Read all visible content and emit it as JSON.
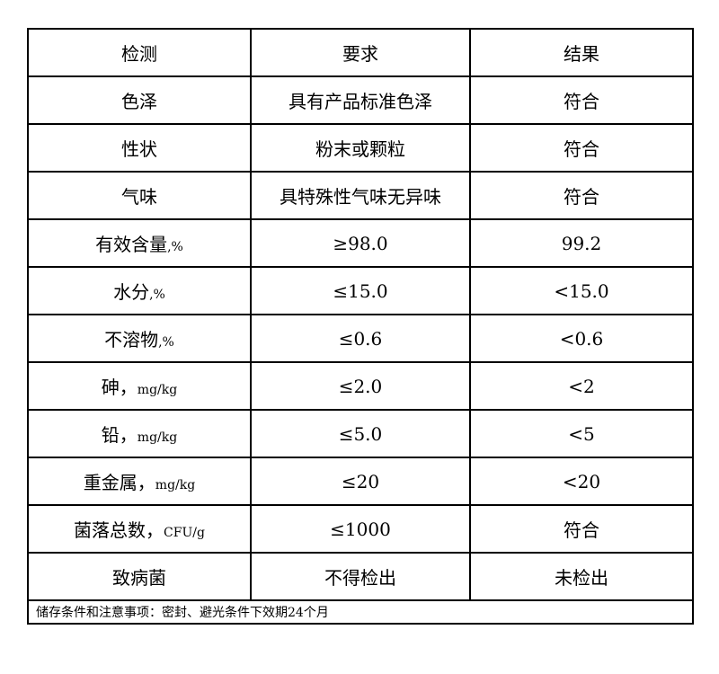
{
  "table": {
    "headers": [
      "检测",
      "要求",
      "结果"
    ],
    "rows": [
      {
        "item": "色泽",
        "unit": "",
        "requirement": "具有产品标准色泽",
        "result": "符合"
      },
      {
        "item": "性状",
        "unit": "",
        "requirement": "粉末或颗粒",
        "result": "符合"
      },
      {
        "item": "气味",
        "unit": "",
        "requirement": "具特殊性气味无异味",
        "result": "符合"
      },
      {
        "item": "有效含量",
        "unit": ",%",
        "requirement": "≥98.0",
        "result": "99.2"
      },
      {
        "item": "水分",
        "unit": ",%",
        "requirement": "≤15.0",
        "result": "<15.0"
      },
      {
        "item": "不溶物",
        "unit": ",%",
        "requirement": "≤0.6",
        "result": "<0.6"
      },
      {
        "item": "砷，",
        "unit": "mg/kg",
        "requirement": "≤2.0",
        "result": "<2"
      },
      {
        "item": "铅，",
        "unit": "mg/kg",
        "requirement": "≤5.0",
        "result": "<5"
      },
      {
        "item": "重金属，",
        "unit": "mg/kg",
        "requirement": "≤20",
        "result": "<20"
      },
      {
        "item": "菌落总数，",
        "unit": "CFU/g",
        "requirement": "≤1000",
        "result": "符合"
      },
      {
        "item": "致病菌",
        "unit": "",
        "requirement": "不得检出",
        "result": "未检出"
      }
    ],
    "footer": "储存条件和注意事项：密封、避光条件下效期24个月"
  }
}
